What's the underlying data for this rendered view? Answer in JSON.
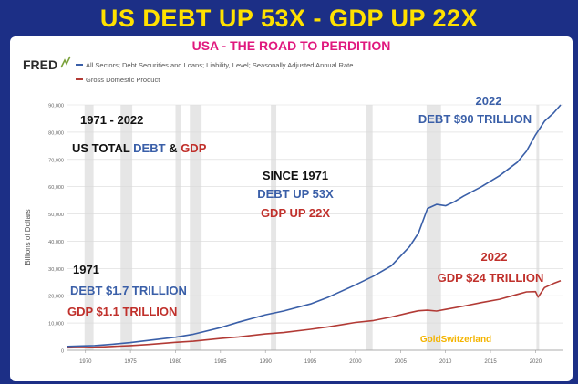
{
  "headline": "US DEBT UP 53X - GDP UP 22X",
  "subtitle": "USA - THE ROAD TO PERDITION",
  "fred_logo": "FRED",
  "colors": {
    "background": "#1c2f86",
    "headline": "#ffe100",
    "subtitle": "#e0187e",
    "debt": "#3a5fa8",
    "gdp": "#b23a35",
    "recession": "#e6e6e6",
    "watermark": "#f4b400"
  },
  "annotations": {
    "period": "1971 - 2022",
    "total_prefix": "US TOTAL ",
    "total_debt": "DEBT",
    "total_amp": " & ",
    "total_gdp": "GDP",
    "since_title": "SINCE 1971",
    "since_debt": "DEBT UP 53X",
    "since_gdp": "GDP UP 22X",
    "start_year": "1971",
    "start_debt": "DEBT $1.7 TRILLION",
    "start_gdp": "GDP $1.1 TRILLION",
    "end_debt_year": "2022",
    "end_debt": "DEBT $90 TRILLION",
    "end_gdp_year": "2022",
    "end_gdp": "GDP $24 TRILLION",
    "watermark": "GoldSwitzerland"
  },
  "chart_data": {
    "type": "line",
    "title": "USA - THE ROAD TO PERDITION",
    "ylabel": "Billions of Dollars",
    "xlabel": "",
    "xlim": [
      1968,
      2023
    ],
    "ylim": [
      0,
      90000
    ],
    "x_ticks": [
      1970,
      1975,
      1980,
      1985,
      1990,
      1995,
      2000,
      2005,
      2010,
      2015,
      2020
    ],
    "y_ticks": [
      0,
      10000,
      20000,
      30000,
      40000,
      50000,
      60000,
      70000,
      80000,
      90000
    ],
    "y_tick_labels": [
      "0",
      "10,000",
      "20,000",
      "30,000",
      "40,000",
      "50,000",
      "60,000",
      "70,000",
      "80,000",
      "90,000"
    ],
    "grid": true,
    "legend_position": "top-left",
    "recessions": [
      [
        1969.9,
        1970.9
      ],
      [
        1973.9,
        1975.2
      ],
      [
        1980.0,
        1980.6
      ],
      [
        1981.6,
        1982.9
      ],
      [
        1990.6,
        1991.2
      ],
      [
        2001.2,
        2001.9
      ],
      [
        2007.9,
        2009.5
      ],
      [
        2020.1,
        2020.4
      ]
    ],
    "series": [
      {
        "name": "All Sectors; Debt Securities and Loans; Liability, Level; Seasonally Adjusted Annual Rate",
        "color": "#3a5fa8",
        "x": [
          1968,
          1970,
          1971,
          1973,
          1975,
          1977,
          1980,
          1982,
          1985,
          1987,
          1990,
          1992,
          1995,
          1997,
          2000,
          2002,
          2004,
          2006,
          2007,
          2008,
          2009,
          2010,
          2011,
          2012,
          2014,
          2016,
          2018,
          2019,
          2020,
          2021,
          2022,
          2022.8
        ],
        "y": [
          1400,
          1600,
          1700,
          2200,
          2800,
          3600,
          4800,
          5900,
          8300,
          10300,
          13000,
          14400,
          17000,
          19500,
          24000,
          27200,
          31000,
          38000,
          43000,
          52000,
          53500,
          53000,
          54500,
          56500,
          60000,
          64000,
          69000,
          73000,
          79000,
          84000,
          87000,
          90000
        ]
      },
      {
        "name": "Gross Domestic Product",
        "color": "#b23a35",
        "x": [
          1968,
          1970,
          1971,
          1973,
          1975,
          1977,
          1980,
          1982,
          1985,
          1987,
          1990,
          1992,
          1995,
          1997,
          2000,
          2002,
          2004,
          2006,
          2007,
          2008,
          2009,
          2010,
          2012,
          2014,
          2016,
          2018,
          2019,
          2020,
          2020.3,
          2020.6,
          2021,
          2022,
          2022.8
        ],
        "y": [
          900,
          1050,
          1100,
          1400,
          1700,
          2100,
          2900,
          3300,
          4300,
          4900,
          6000,
          6500,
          7700,
          8600,
          10200,
          10900,
          12200,
          13800,
          14500,
          14700,
          14400,
          15000,
          16200,
          17500,
          18700,
          20500,
          21400,
          21500,
          19500,
          21000,
          23000,
          24500,
          25500
        ]
      }
    ]
  }
}
